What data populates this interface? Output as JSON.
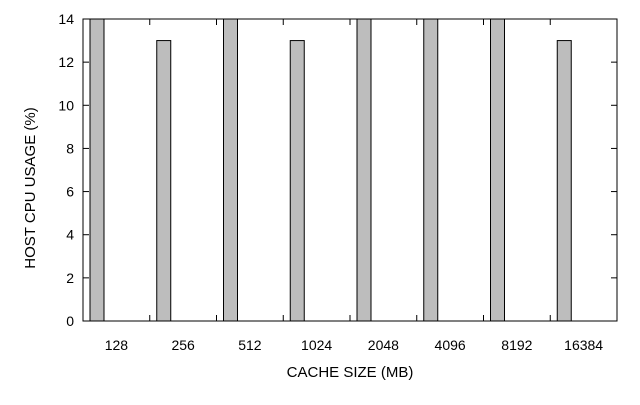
{
  "chart_data": {
    "type": "bar",
    "categories": [
      "128",
      "256",
      "512",
      "1024",
      "2048",
      "4096",
      "8192",
      "16384"
    ],
    "values": [
      14,
      13,
      14,
      13,
      14,
      14,
      14,
      13
    ],
    "xlabel": "CACHE SIZE (MB)",
    "ylabel": "HOST CPU USAGE (%)",
    "ylim": [
      0,
      14
    ],
    "yticks": [
      0,
      2,
      4,
      6,
      8,
      10,
      12,
      14
    ],
    "grid": false,
    "bar_color": "#bdbdbd"
  }
}
